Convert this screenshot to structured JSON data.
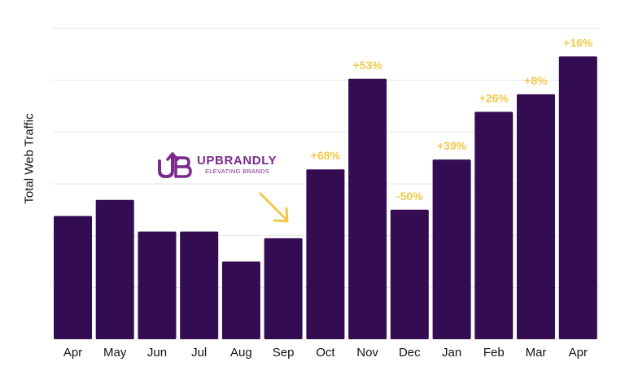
{
  "chart_data": {
    "type": "bar",
    "ylabel": "Total Web Traffic",
    "xlabel": "",
    "categories": [
      "Apr",
      "May",
      "Jun",
      "Jul",
      "Aug",
      "Sep",
      "Oct",
      "Nov",
      "Dec",
      "Jan",
      "Feb",
      "Mar",
      "Apr"
    ],
    "values": [
      2.38,
      2.69,
      2.08,
      2.08,
      1.5,
      1.95,
      3.28,
      5.03,
      2.5,
      3.47,
      4.39,
      4.73,
      5.46
    ],
    "annotations": [
      "",
      "",
      "",
      "",
      "",
      "",
      "+68%",
      "+53%",
      "-50%",
      "+39%",
      "+26%",
      "+8%",
      "+16%"
    ],
    "ylim": [
      0,
      6
    ],
    "yticks": [
      0,
      1,
      2,
      3,
      4,
      5,
      6
    ],
    "grid": true,
    "bar_color": "#330c52",
    "annotation_color": "#f2c94c",
    "arrow_color": "#f2c94c"
  },
  "logo": {
    "name": "UPBRANDLY",
    "tagline": "ELEVATING BRANDS",
    "color": "#7b2a8c"
  }
}
